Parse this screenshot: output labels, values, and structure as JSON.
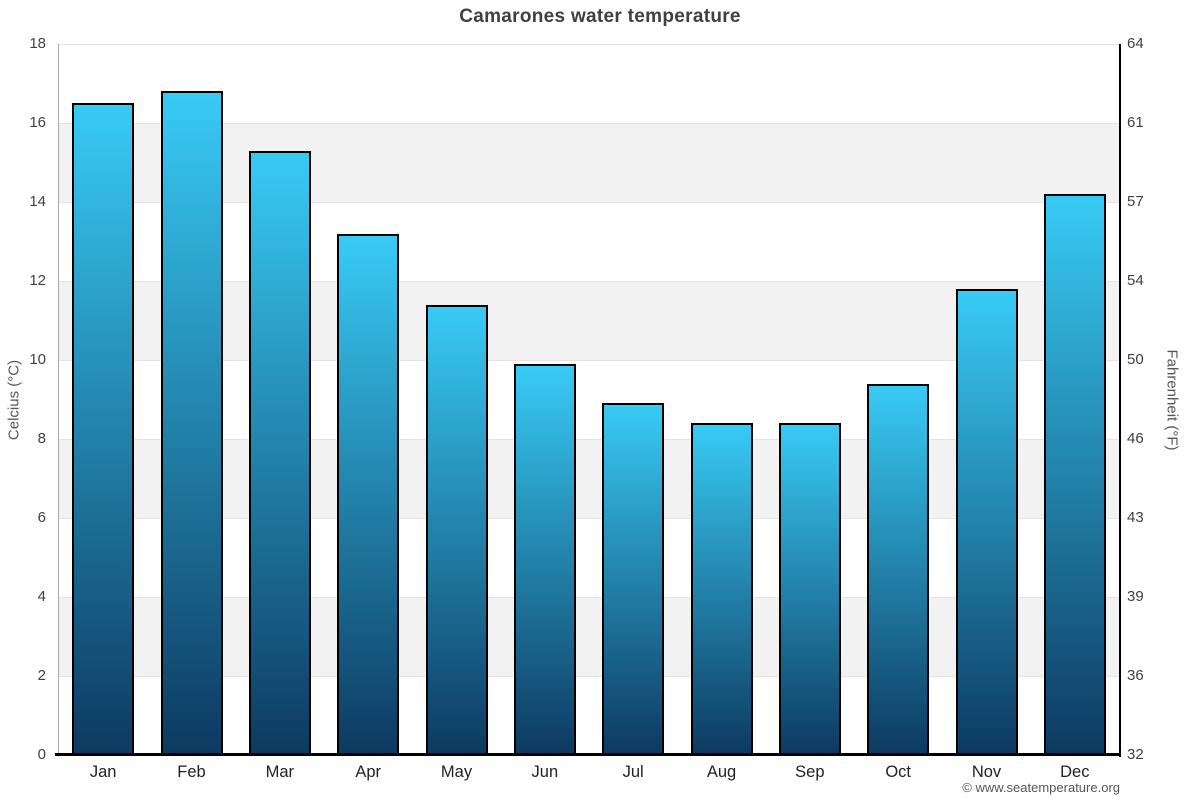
{
  "title": "Camarones water temperature",
  "footer": {
    "credit": "© www.seatemperature.org"
  },
  "chart_data": {
    "type": "bar",
    "title": "Camarones water temperature",
    "categories": [
      "Jan",
      "Feb",
      "Mar",
      "Apr",
      "May",
      "Jun",
      "Jul",
      "Aug",
      "Sep",
      "Oct",
      "Nov",
      "Dec"
    ],
    "values": [
      16.5,
      16.8,
      15.3,
      13.2,
      11.4,
      9.9,
      8.9,
      8.4,
      8.4,
      9.4,
      11.8,
      14.2
    ],
    "series_name": "Water temperature",
    "ylabel_left": "Celcius (°C)",
    "ylabel_right": "Fahrenheit (°F)",
    "xlabel": "",
    "ylim": [
      0,
      18
    ],
    "ytick_step_celsius": 2,
    "yticks_left_top_to_bottom": [
      "18",
      "16",
      "14",
      "12",
      "10",
      "8",
      "6",
      "4",
      "2",
      "0"
    ],
    "yticks_right_top_to_bottom": [
      "64",
      "61",
      "57",
      "54",
      "50",
      "46",
      "43",
      "39",
      "36",
      "32"
    ],
    "grid": "horizontal",
    "legend": "none",
    "plot_bands_alternating": true
  },
  "colors": {
    "bar_gradient_top": "#38cbf5",
    "bar_gradient_bottom": "#0d3a61",
    "bar_border": "#000000",
    "band_gray": "#f2f2f2",
    "band_white": "#ffffff",
    "gridline": "#e4e4e4",
    "axis_left": "#aaaaaa",
    "axis_right": "#000000",
    "axis_bottom": "#000000",
    "title_text": "#404040",
    "tick_text": "#404040",
    "month_text": "#222222",
    "axis_title_text": "#555555",
    "credit_text": "#555555"
  }
}
